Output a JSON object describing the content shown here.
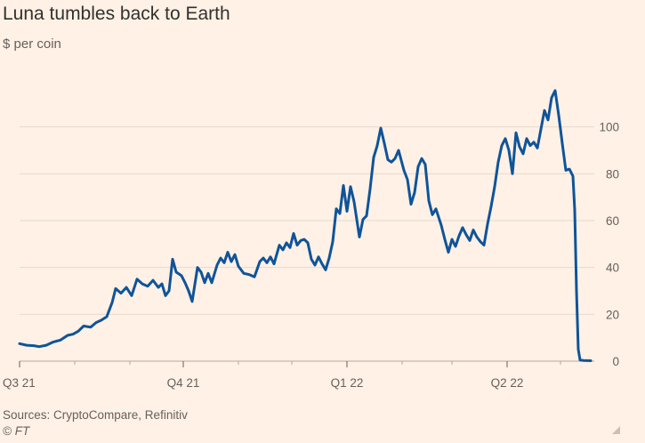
{
  "header": {
    "title": "Luna tumbles back to Earth",
    "subtitle": "$ per coin"
  },
  "footer": {
    "source": "Sources: CryptoCompare, Refinitiv",
    "copyright": "© FT"
  },
  "colors": {
    "background": "#fff1e5",
    "line": "#0f5499",
    "grid": "#e6d9ce",
    "text": "#66605c"
  },
  "chart_data": {
    "type": "line",
    "title": "Luna tumbles back to Earth",
    "ylabel": "$ per coin",
    "ylim": [
      0,
      120
    ],
    "yticks": [
      0,
      20,
      40,
      60,
      80,
      100
    ],
    "ytick_labels": [
      "0",
      "20",
      "40",
      "60",
      "80",
      "100"
    ],
    "x_axis": "date",
    "xlim": [
      "2021-07-01",
      "2022-05-18"
    ],
    "xticks": [
      "2021-07-01",
      "2021-10-01",
      "2022-01-01",
      "2022-04-01"
    ],
    "xtick_labels": [
      "Q3 21",
      "Q4 21",
      "Q1 22",
      "Q2 22"
    ],
    "grid": true,
    "legend": "none",
    "series": [
      {
        "values": [
          [
            "2021-07-01",
            7.5
          ],
          [
            "2021-07-05",
            6.8
          ],
          [
            "2021-07-09",
            6.6
          ],
          [
            "2021-07-12",
            6.2
          ],
          [
            "2021-07-16",
            6.8
          ],
          [
            "2021-07-20",
            8.2
          ],
          [
            "2021-07-24",
            9.0
          ],
          [
            "2021-07-28",
            11.0
          ],
          [
            "2021-07-31",
            11.5
          ],
          [
            "2021-08-03",
            12.8
          ],
          [
            "2021-08-06",
            15.0
          ],
          [
            "2021-08-10",
            14.5
          ],
          [
            "2021-08-13",
            16.5
          ],
          [
            "2021-08-16",
            17.5
          ],
          [
            "2021-08-19",
            19.0
          ],
          [
            "2021-08-22",
            25.0
          ],
          [
            "2021-08-24",
            31.0
          ],
          [
            "2021-08-27",
            29.0
          ],
          [
            "2021-08-30",
            31.5
          ],
          [
            "2021-09-02",
            28.0
          ],
          [
            "2021-09-05",
            35.0
          ],
          [
            "2021-09-08",
            33.0
          ],
          [
            "2021-09-11",
            32.0
          ],
          [
            "2021-09-14",
            34.5
          ],
          [
            "2021-09-17",
            31.5
          ],
          [
            "2021-09-19",
            33.0
          ],
          [
            "2021-09-21",
            28.0
          ],
          [
            "2021-09-23",
            30.0
          ],
          [
            "2021-09-25",
            43.5
          ],
          [
            "2021-09-27",
            38.0
          ],
          [
            "2021-09-30",
            36.5
          ],
          [
            "2021-10-02",
            33.5
          ],
          [
            "2021-10-04",
            30.0
          ],
          [
            "2021-10-06",
            25.5
          ],
          [
            "2021-10-09",
            40.0
          ],
          [
            "2021-10-11",
            38.0
          ],
          [
            "2021-10-13",
            33.5
          ],
          [
            "2021-10-15",
            37.5
          ],
          [
            "2021-10-17",
            33.5
          ],
          [
            "2021-10-20",
            41.0
          ],
          [
            "2021-10-22",
            44.0
          ],
          [
            "2021-10-24",
            42.0
          ],
          [
            "2021-10-26",
            46.5
          ],
          [
            "2021-10-28",
            42.5
          ],
          [
            "2021-10-30",
            45.5
          ],
          [
            "2021-11-01",
            40.5
          ],
          [
            "2021-11-04",
            37.5
          ],
          [
            "2021-11-07",
            37.0
          ],
          [
            "2021-11-10",
            36.0
          ],
          [
            "2021-11-13",
            42.5
          ],
          [
            "2021-11-15",
            44.0
          ],
          [
            "2021-11-17",
            42.0
          ],
          [
            "2021-11-19",
            44.5
          ],
          [
            "2021-11-21",
            41.5
          ],
          [
            "2021-11-24",
            49.5
          ],
          [
            "2021-11-26",
            47.5
          ],
          [
            "2021-11-28",
            50.5
          ],
          [
            "2021-11-30",
            48.5
          ],
          [
            "2021-12-02",
            54.5
          ],
          [
            "2021-12-04",
            49.5
          ],
          [
            "2021-12-06",
            51.5
          ],
          [
            "2021-12-08",
            52.0
          ],
          [
            "2021-12-10",
            50.5
          ],
          [
            "2021-12-12",
            43.5
          ],
          [
            "2021-12-14",
            41.0
          ],
          [
            "2021-12-16",
            44.5
          ],
          [
            "2021-12-18",
            41.5
          ],
          [
            "2021-12-20",
            39.0
          ],
          [
            "2021-12-22",
            44.0
          ],
          [
            "2021-12-24",
            51.0
          ],
          [
            "2021-12-26",
            65.0
          ],
          [
            "2021-12-28",
            63.0
          ],
          [
            "2021-12-30",
            75.0
          ],
          [
            "2022-01-01",
            64.0
          ],
          [
            "2022-01-03",
            74.5
          ],
          [
            "2022-01-05",
            68.0
          ],
          [
            "2022-01-08",
            53.0
          ],
          [
            "2022-01-10",
            60.5
          ],
          [
            "2022-01-12",
            62.0
          ],
          [
            "2022-01-14",
            73.5
          ],
          [
            "2022-01-16",
            87.0
          ],
          [
            "2022-01-18",
            92.0
          ],
          [
            "2022-01-20",
            99.5
          ],
          [
            "2022-01-22",
            93.0
          ],
          [
            "2022-01-24",
            86.0
          ],
          [
            "2022-01-26",
            85.0
          ],
          [
            "2022-01-28",
            86.5
          ],
          [
            "2022-01-30",
            90.0
          ],
          [
            "2022-02-02",
            81.5
          ],
          [
            "2022-02-04",
            77.5
          ],
          [
            "2022-02-06",
            67.0
          ],
          [
            "2022-02-08",
            72.0
          ],
          [
            "2022-02-10",
            83.0
          ],
          [
            "2022-02-12",
            86.5
          ],
          [
            "2022-02-14",
            84.0
          ],
          [
            "2022-02-16",
            68.5
          ],
          [
            "2022-02-18",
            62.5
          ],
          [
            "2022-02-20",
            65.0
          ],
          [
            "2022-02-23",
            58.0
          ],
          [
            "2022-02-25",
            52.0
          ],
          [
            "2022-02-27",
            46.5
          ],
          [
            "2022-03-01",
            52.0
          ],
          [
            "2022-03-03",
            49.0
          ],
          [
            "2022-03-05",
            53.5
          ],
          [
            "2022-03-07",
            57.0
          ],
          [
            "2022-03-09",
            54.0
          ],
          [
            "2022-03-11",
            51.5
          ],
          [
            "2022-03-13",
            56.0
          ],
          [
            "2022-03-15",
            53.0
          ],
          [
            "2022-03-17",
            51.0
          ],
          [
            "2022-03-19",
            49.5
          ],
          [
            "2022-03-21",
            58.5
          ],
          [
            "2022-03-23",
            66.0
          ],
          [
            "2022-03-25",
            74.5
          ],
          [
            "2022-03-27",
            85.0
          ],
          [
            "2022-03-29",
            92.0
          ],
          [
            "2022-03-31",
            95.0
          ],
          [
            "2022-04-02",
            90.0
          ],
          [
            "2022-04-04",
            80.0
          ],
          [
            "2022-04-06",
            97.5
          ],
          [
            "2022-04-08",
            91.5
          ],
          [
            "2022-04-10",
            88.5
          ],
          [
            "2022-04-12",
            95.0
          ],
          [
            "2022-04-14",
            92.0
          ],
          [
            "2022-04-16",
            93.5
          ],
          [
            "2022-04-18",
            91.0
          ],
          [
            "2022-04-20",
            99.0
          ],
          [
            "2022-04-22",
            107.0
          ],
          [
            "2022-04-24",
            103.0
          ],
          [
            "2022-04-26",
            112.5
          ],
          [
            "2022-04-28",
            115.5
          ],
          [
            "2022-04-30",
            105.0
          ],
          [
            "2022-05-02",
            93.0
          ],
          [
            "2022-05-04",
            81.5
          ],
          [
            "2022-05-06",
            82.0
          ],
          [
            "2022-05-08",
            79.0
          ],
          [
            "2022-05-09",
            64.5
          ],
          [
            "2022-05-10",
            30.0
          ],
          [
            "2022-05-11",
            5.0
          ],
          [
            "2022-05-12",
            0.5
          ],
          [
            "2022-05-14",
            0.3
          ],
          [
            "2022-05-18",
            0.2
          ]
        ]
      }
    ]
  }
}
